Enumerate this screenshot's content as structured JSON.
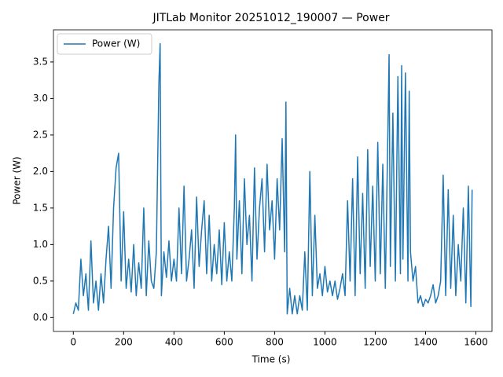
{
  "chart_data": {
    "type": "line",
    "title": "JITLab Monitor 20251012_190007 — Power",
    "xlabel": "Time (s)",
    "ylabel": "Power (W)",
    "x": [
      0,
      10,
      20,
      30,
      40,
      50,
      60,
      70,
      80,
      90,
      100,
      110,
      120,
      130,
      140,
      150,
      160,
      170,
      180,
      190,
      200,
      210,
      220,
      230,
      240,
      250,
      260,
      270,
      280,
      290,
      300,
      310,
      320,
      330,
      340,
      345,
      350,
      360,
      370,
      380,
      390,
      400,
      410,
      420,
      430,
      440,
      450,
      460,
      470,
      480,
      490,
      500,
      510,
      520,
      530,
      540,
      550,
      560,
      570,
      580,
      590,
      600,
      610,
      620,
      630,
      640,
      645,
      650,
      660,
      670,
      680,
      690,
      700,
      710,
      720,
      730,
      740,
      750,
      760,
      770,
      780,
      790,
      800,
      810,
      820,
      830,
      840,
      845,
      850,
      860,
      870,
      880,
      890,
      900,
      910,
      920,
      930,
      940,
      950,
      960,
      970,
      980,
      990,
      1000,
      1010,
      1020,
      1030,
      1040,
      1050,
      1060,
      1070,
      1080,
      1090,
      1100,
      1110,
      1120,
      1130,
      1140,
      1150,
      1160,
      1170,
      1180,
      1190,
      1200,
      1210,
      1220,
      1230,
      1240,
      1250,
      1255,
      1260,
      1270,
      1280,
      1290,
      1300,
      1305,
      1310,
      1320,
      1330,
      1335,
      1340,
      1350,
      1360,
      1370,
      1380,
      1390,
      1400,
      1410,
      1420,
      1430,
      1440,
      1450,
      1460,
      1470,
      1480,
      1490,
      1500,
      1510,
      1520,
      1530,
      1540,
      1550,
      1560,
      1570,
      1580,
      1585
    ],
    "series": [
      {
        "name": "Power (W)",
        "color": "#1f77b4",
        "values": [
          0.05,
          0.2,
          0.1,
          0.8,
          0.3,
          0.6,
          0.1,
          1.05,
          0.2,
          0.5,
          0.1,
          0.6,
          0.2,
          0.8,
          1.25,
          0.4,
          1.5,
          2.05,
          2.25,
          0.5,
          1.45,
          0.4,
          0.8,
          0.35,
          1.0,
          0.3,
          0.75,
          0.4,
          1.5,
          0.3,
          1.05,
          0.5,
          0.4,
          0.9,
          3.2,
          3.75,
          0.3,
          0.9,
          0.55,
          1.05,
          0.5,
          0.8,
          0.5,
          1.5,
          0.6,
          1.8,
          0.5,
          0.8,
          1.2,
          0.4,
          1.65,
          0.7,
          1.2,
          1.6,
          0.6,
          1.4,
          0.5,
          1.0,
          0.6,
          1.2,
          0.45,
          1.3,
          0.5,
          0.9,
          0.5,
          1.5,
          2.5,
          0.8,
          1.6,
          0.6,
          1.9,
          1.0,
          1.4,
          0.5,
          2.05,
          0.8,
          1.5,
          1.9,
          0.9,
          2.1,
          1.2,
          1.6,
          0.8,
          1.9,
          1.2,
          2.45,
          0.9,
          2.95,
          0.05,
          0.4,
          0.05,
          0.3,
          0.05,
          0.3,
          0.1,
          0.9,
          0.1,
          2.0,
          0.3,
          1.4,
          0.4,
          0.6,
          0.3,
          0.7,
          0.35,
          0.5,
          0.3,
          0.5,
          0.25,
          0.4,
          0.6,
          0.3,
          1.6,
          0.5,
          1.9,
          0.3,
          2.2,
          0.6,
          1.7,
          0.4,
          2.3,
          0.7,
          1.8,
          0.5,
          2.4,
          0.6,
          2.1,
          0.4,
          2.5,
          3.6,
          0.7,
          2.8,
          0.5,
          3.3,
          0.6,
          3.45,
          0.8,
          3.35,
          0.5,
          3.1,
          0.9,
          0.5,
          0.7,
          0.2,
          0.3,
          0.15,
          0.25,
          0.2,
          0.3,
          0.45,
          0.2,
          0.3,
          0.5,
          1.95,
          0.3,
          1.75,
          0.4,
          1.4,
          0.3,
          1.0,
          0.5,
          1.5,
          0.2,
          1.8,
          0.15,
          1.75
        ]
      }
    ],
    "xlim": [
      -79,
      1664
    ],
    "ylim": [
      -0.19,
      3.94
    ],
    "xticks": [
      0,
      200,
      400,
      600,
      800,
      1000,
      1200,
      1400,
      1600
    ],
    "yticks": [
      {
        "value": 0,
        "label": "0.0"
      },
      0.5,
      {
        "value": 1,
        "label": "1.0"
      },
      1.5,
      {
        "value": 2,
        "label": "2.0"
      },
      2.5,
      {
        "value": 3,
        "label": "3.0"
      },
      3.5
    ],
    "grid": false,
    "legend": "upper left"
  }
}
